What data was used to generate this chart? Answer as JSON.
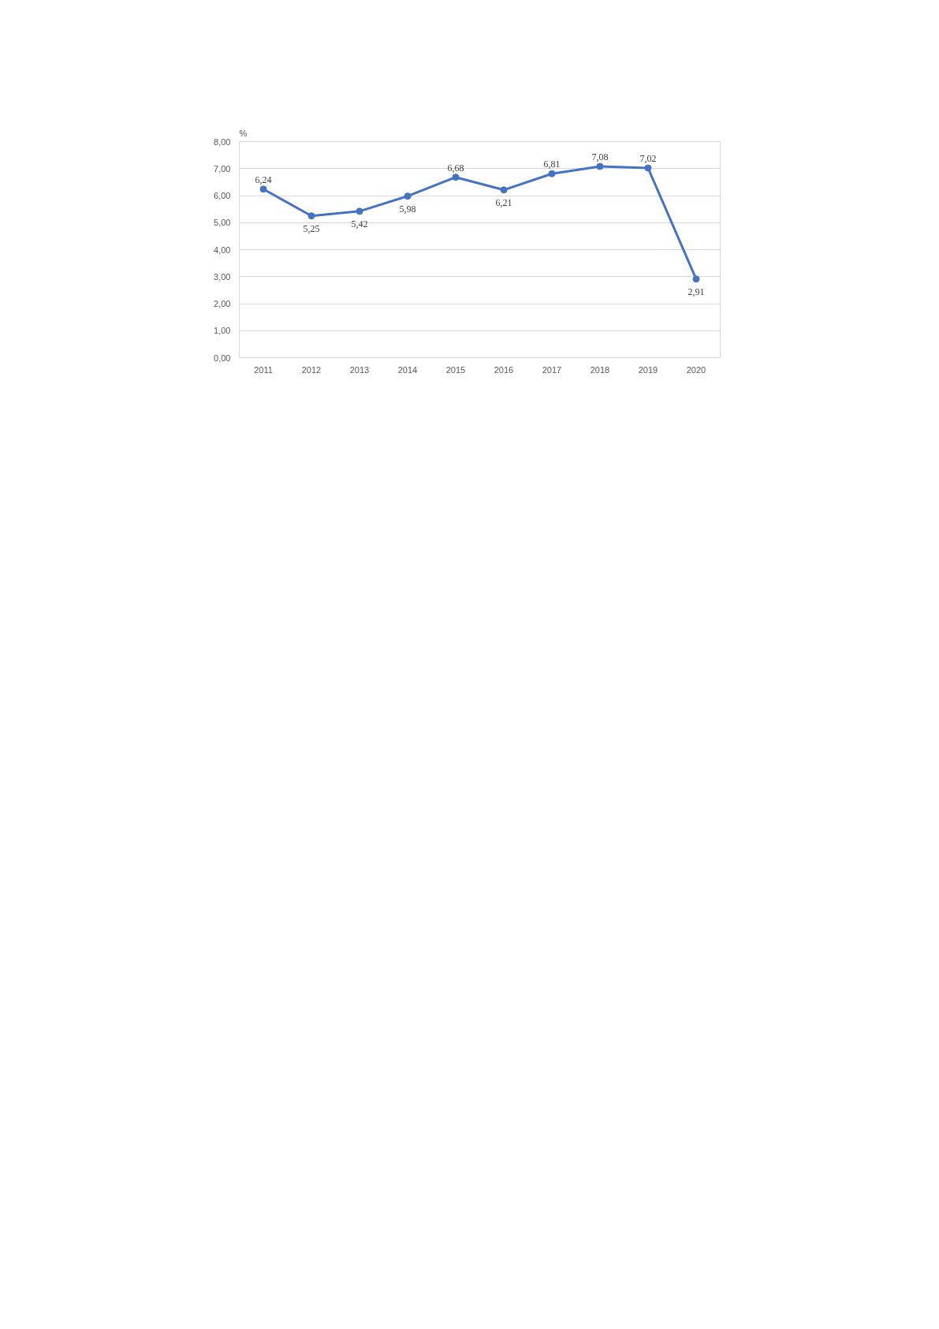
{
  "chart_data": {
    "type": "line",
    "ylabel": "%",
    "categories": [
      "2011",
      "2012",
      "2013",
      "2014",
      "2015",
      "2016",
      "2017",
      "2018",
      "2019",
      "2020"
    ],
    "series": [
      {
        "color": "#4472c4",
        "values": [
          6.24,
          5.25,
          5.42,
          5.98,
          6.68,
          6.21,
          6.81,
          7.08,
          7.02,
          2.91
        ],
        "value_labels": [
          "6,24",
          "5,25",
          "5,42",
          "5,98",
          "6,68",
          "6,21",
          "6,81",
          "7,08",
          "7,02",
          "2,91"
        ]
      }
    ],
    "ylim": [
      0,
      8
    ],
    "yticks": [
      {
        "value": 0,
        "label": "0,00"
      },
      {
        "value": 1,
        "label": "1,00"
      },
      {
        "value": 2,
        "label": "2,00"
      },
      {
        "value": 3,
        "label": "3,00"
      },
      {
        "value": 4,
        "label": "4,00"
      },
      {
        "value": 5,
        "label": "5,00"
      },
      {
        "value": 6,
        "label": "6,00"
      },
      {
        "value": 7,
        "label": "7,00"
      },
      {
        "value": 8,
        "label": "8,00"
      }
    ],
    "grid": "y",
    "marker": "circle",
    "line_style": "solid"
  }
}
